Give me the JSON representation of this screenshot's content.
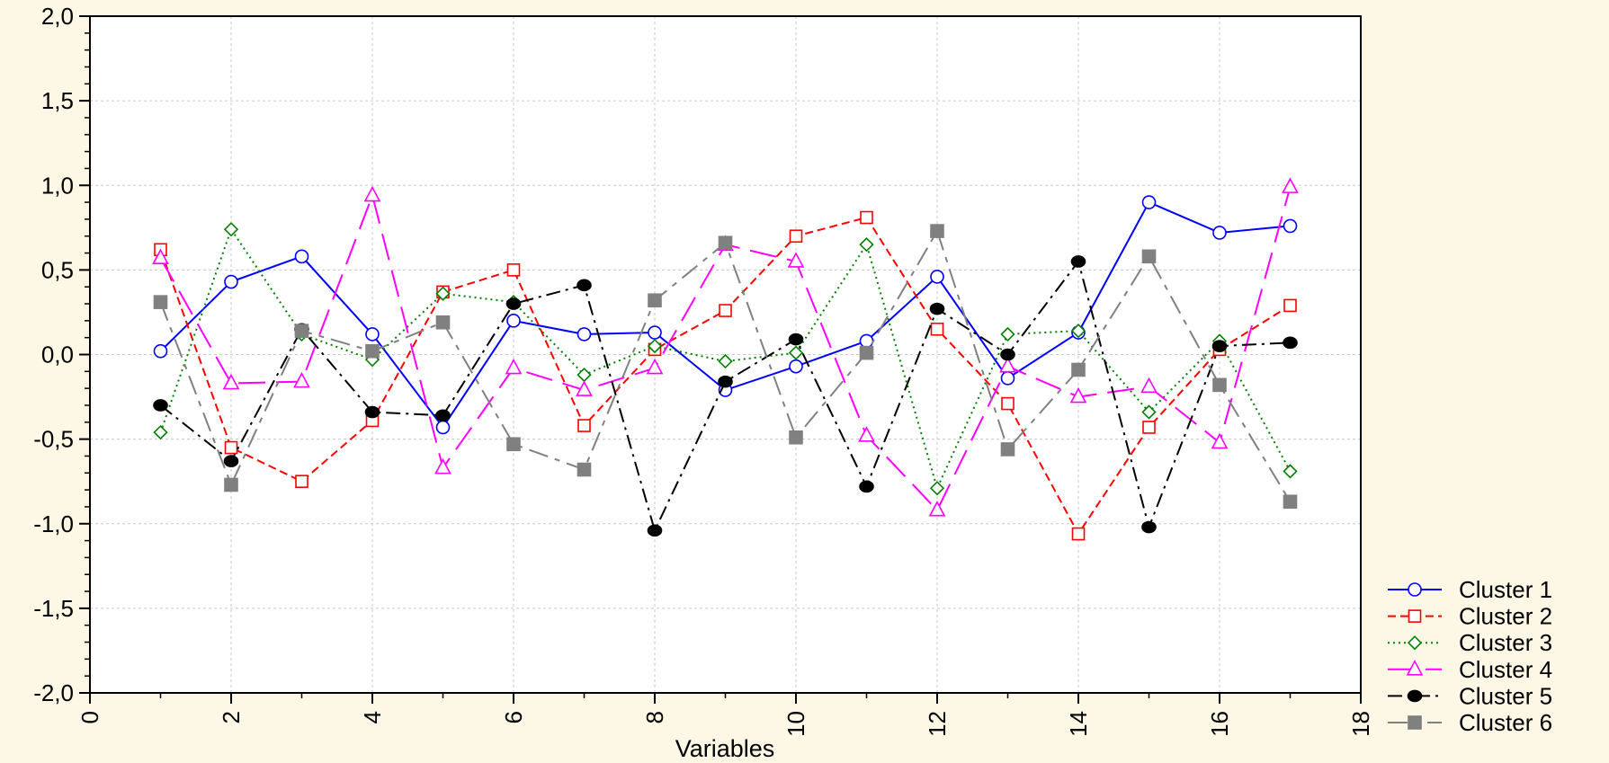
{
  "chart_data": {
    "type": "line",
    "title": "",
    "xlabel": "Variables",
    "ylabel": "",
    "xlim": [
      0,
      18
    ],
    "ylim": [
      -2.0,
      2.0
    ],
    "x_ticks": [
      "0",
      "2",
      "4",
      "6",
      "8",
      "10",
      "12",
      "14",
      "16",
      "18"
    ],
    "y_ticks": [
      "2,0",
      "1,5",
      "1,0",
      "0,5",
      "0,0",
      "-0,5",
      "-1,0",
      "-1,5",
      "-2,0"
    ],
    "grid": true,
    "legend_position": "bottom-right",
    "x": [
      1,
      2,
      3,
      4,
      5,
      6,
      7,
      8,
      9,
      10,
      11,
      12,
      13,
      14,
      15,
      16,
      17
    ],
    "series": [
      {
        "name": "Cluster  1",
        "color": "#0000ff",
        "marker": "circle-open",
        "dash": "solid",
        "values": [
          0.02,
          0.43,
          0.58,
          0.12,
          -0.43,
          0.2,
          0.12,
          0.13,
          -0.21,
          -0.07,
          0.08,
          0.46,
          -0.14,
          0.13,
          0.9,
          0.72,
          0.76
        ]
      },
      {
        "name": "Cluster  2",
        "color": "#ff0000",
        "marker": "square-open",
        "dash": "dashed",
        "values": [
          0.62,
          -0.55,
          -0.75,
          -0.39,
          0.37,
          0.5,
          -0.42,
          0.03,
          0.26,
          0.7,
          0.81,
          0.15,
          -0.29,
          -1.06,
          -0.43,
          0.03,
          0.29
        ]
      },
      {
        "name": "Cluster  3",
        "color": "#008000",
        "marker": "diamond-open",
        "dash": "dotted",
        "values": [
          -0.46,
          0.74,
          0.12,
          -0.03,
          0.36,
          0.31,
          -0.12,
          0.05,
          -0.04,
          0.01,
          0.65,
          -0.79,
          0.12,
          0.14,
          -0.34,
          0.08,
          -0.69
        ]
      },
      {
        "name": "Cluster  4",
        "color": "#ff00ff",
        "marker": "triangle-open",
        "dash": "longdash",
        "values": [
          0.57,
          -0.17,
          -0.16,
          0.94,
          -0.67,
          -0.08,
          -0.21,
          -0.08,
          0.65,
          0.55,
          -0.48,
          -0.92,
          -0.07,
          -0.25,
          -0.19,
          -0.52,
          0.99
        ]
      },
      {
        "name": "Cluster  5",
        "color": "#000000",
        "marker": "circle-filled",
        "dash": "dashdot",
        "values": [
          -0.3,
          -0.63,
          0.15,
          -0.34,
          -0.36,
          0.3,
          0.41,
          -1.04,
          -0.16,
          0.09,
          -0.78,
          0.27,
          0.0,
          0.55,
          -1.02,
          0.05,
          0.07
        ]
      },
      {
        "name": "Cluster  6",
        "color": "#808080",
        "marker": "square-filled",
        "dash": "longdashgap",
        "values": [
          0.31,
          -0.77,
          0.14,
          0.02,
          0.19,
          -0.53,
          -0.68,
          0.32,
          0.66,
          -0.49,
          0.01,
          0.73,
          -0.56,
          -0.09,
          0.58,
          -0.18,
          -0.87
        ]
      }
    ]
  }
}
